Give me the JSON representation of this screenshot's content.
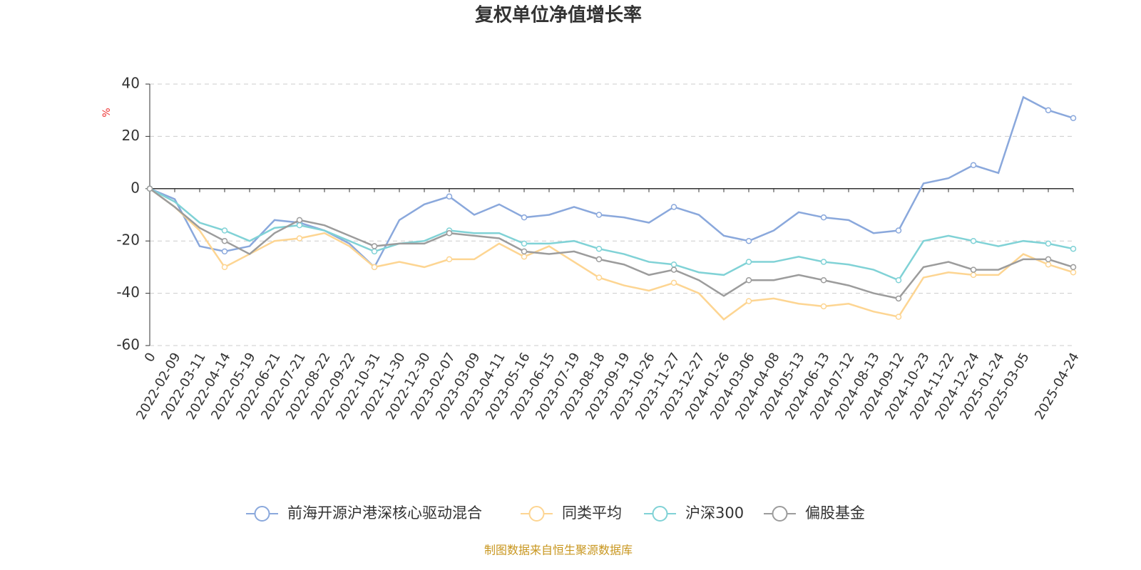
{
  "chart_data": {
    "type": "line",
    "title": "复权单位净值增长率",
    "y_label": "%",
    "source": "制图数据来自恒生聚源数据库",
    "categories": [
      "0",
      "2022-02-09",
      "2022-03-11",
      "2022-04-14",
      "2022-05-19",
      "2022-06-21",
      "2022-07-21",
      "2022-08-22",
      "2022-09-22",
      "2022-10-31",
      "2022-11-30",
      "2022-12-30",
      "2023-02-07",
      "2023-03-09",
      "2023-04-11",
      "2023-05-16",
      "2023-06-15",
      "2023-07-19",
      "2023-08-18",
      "2023-09-19",
      "2023-10-26",
      "2023-11-27",
      "2023-12-27",
      "2024-01-26",
      "2024-03-06",
      "2024-04-08",
      "2024-05-13",
      "2024-06-13",
      "2024-07-12",
      "2024-08-13",
      "2024-09-12",
      "2024-10-23",
      "2024-11-22",
      "2024-12-24",
      "2025-01-24",
      "2025-03-05",
      null,
      "2025-04-24"
    ],
    "series": [
      {
        "name": "前海开源沪港深核心驱动混合",
        "color": "#8aa8dc",
        "values": [
          0,
          -4,
          -22,
          -24,
          -22,
          -12,
          -13,
          -16,
          -21,
          -30,
          -12,
          -6,
          -3,
          -10,
          -6,
          -11,
          -10,
          -7,
          -10,
          -11,
          -13,
          -7,
          -10,
          -18,
          -20,
          -16,
          -9,
          -11,
          -12,
          -17,
          -16,
          2,
          4,
          9,
          6,
          35,
          30,
          27
        ]
      },
      {
        "name": "同类平均",
        "color": "#fdd592",
        "values": [
          0,
          -7,
          -16,
          -30,
          -25,
          -20,
          -19,
          -17,
          -22,
          -30,
          -28,
          -30,
          -27,
          -27,
          -21,
          -26,
          -22,
          -28,
          -34,
          -37,
          -39,
          -36,
          -40,
          -50,
          -43,
          -42,
          -44,
          -45,
          -44,
          -47,
          -49,
          -34,
          -32,
          -33,
          -33,
          -25,
          -29,
          -32
        ]
      },
      {
        "name": "沪深300",
        "color": "#80d2d6",
        "values": [
          0,
          -5,
          -13,
          -16,
          -20,
          -15,
          -14,
          -16,
          -20,
          -24,
          -21,
          -20,
          -16,
          -17,
          -17,
          -21,
          -21,
          -20,
          -23,
          -25,
          -28,
          -29,
          -32,
          -33,
          -28,
          -28,
          -26,
          -28,
          -29,
          -31,
          -35,
          -20,
          -18,
          -20,
          -22,
          -20,
          -21,
          -23
        ]
      },
      {
        "name": "偏股基金",
        "color": "#9c9c9c",
        "values": [
          0,
          -7,
          -15,
          -20,
          -25,
          -17,
          -12,
          -14,
          -18,
          -22,
          -21,
          -21,
          -17,
          -18,
          -19,
          -24,
          -25,
          -24,
          -27,
          -29,
          -33,
          -31,
          -35,
          -41,
          -35,
          -35,
          -33,
          -35,
          -37,
          -40,
          -42,
          -30,
          -28,
          -31,
          -31,
          -27,
          -27,
          -30
        ]
      }
    ],
    "ylim": [
      -60,
      40
    ],
    "yticks": [
      -60,
      -40,
      -20,
      0,
      20,
      40
    ],
    "grid": true
  }
}
